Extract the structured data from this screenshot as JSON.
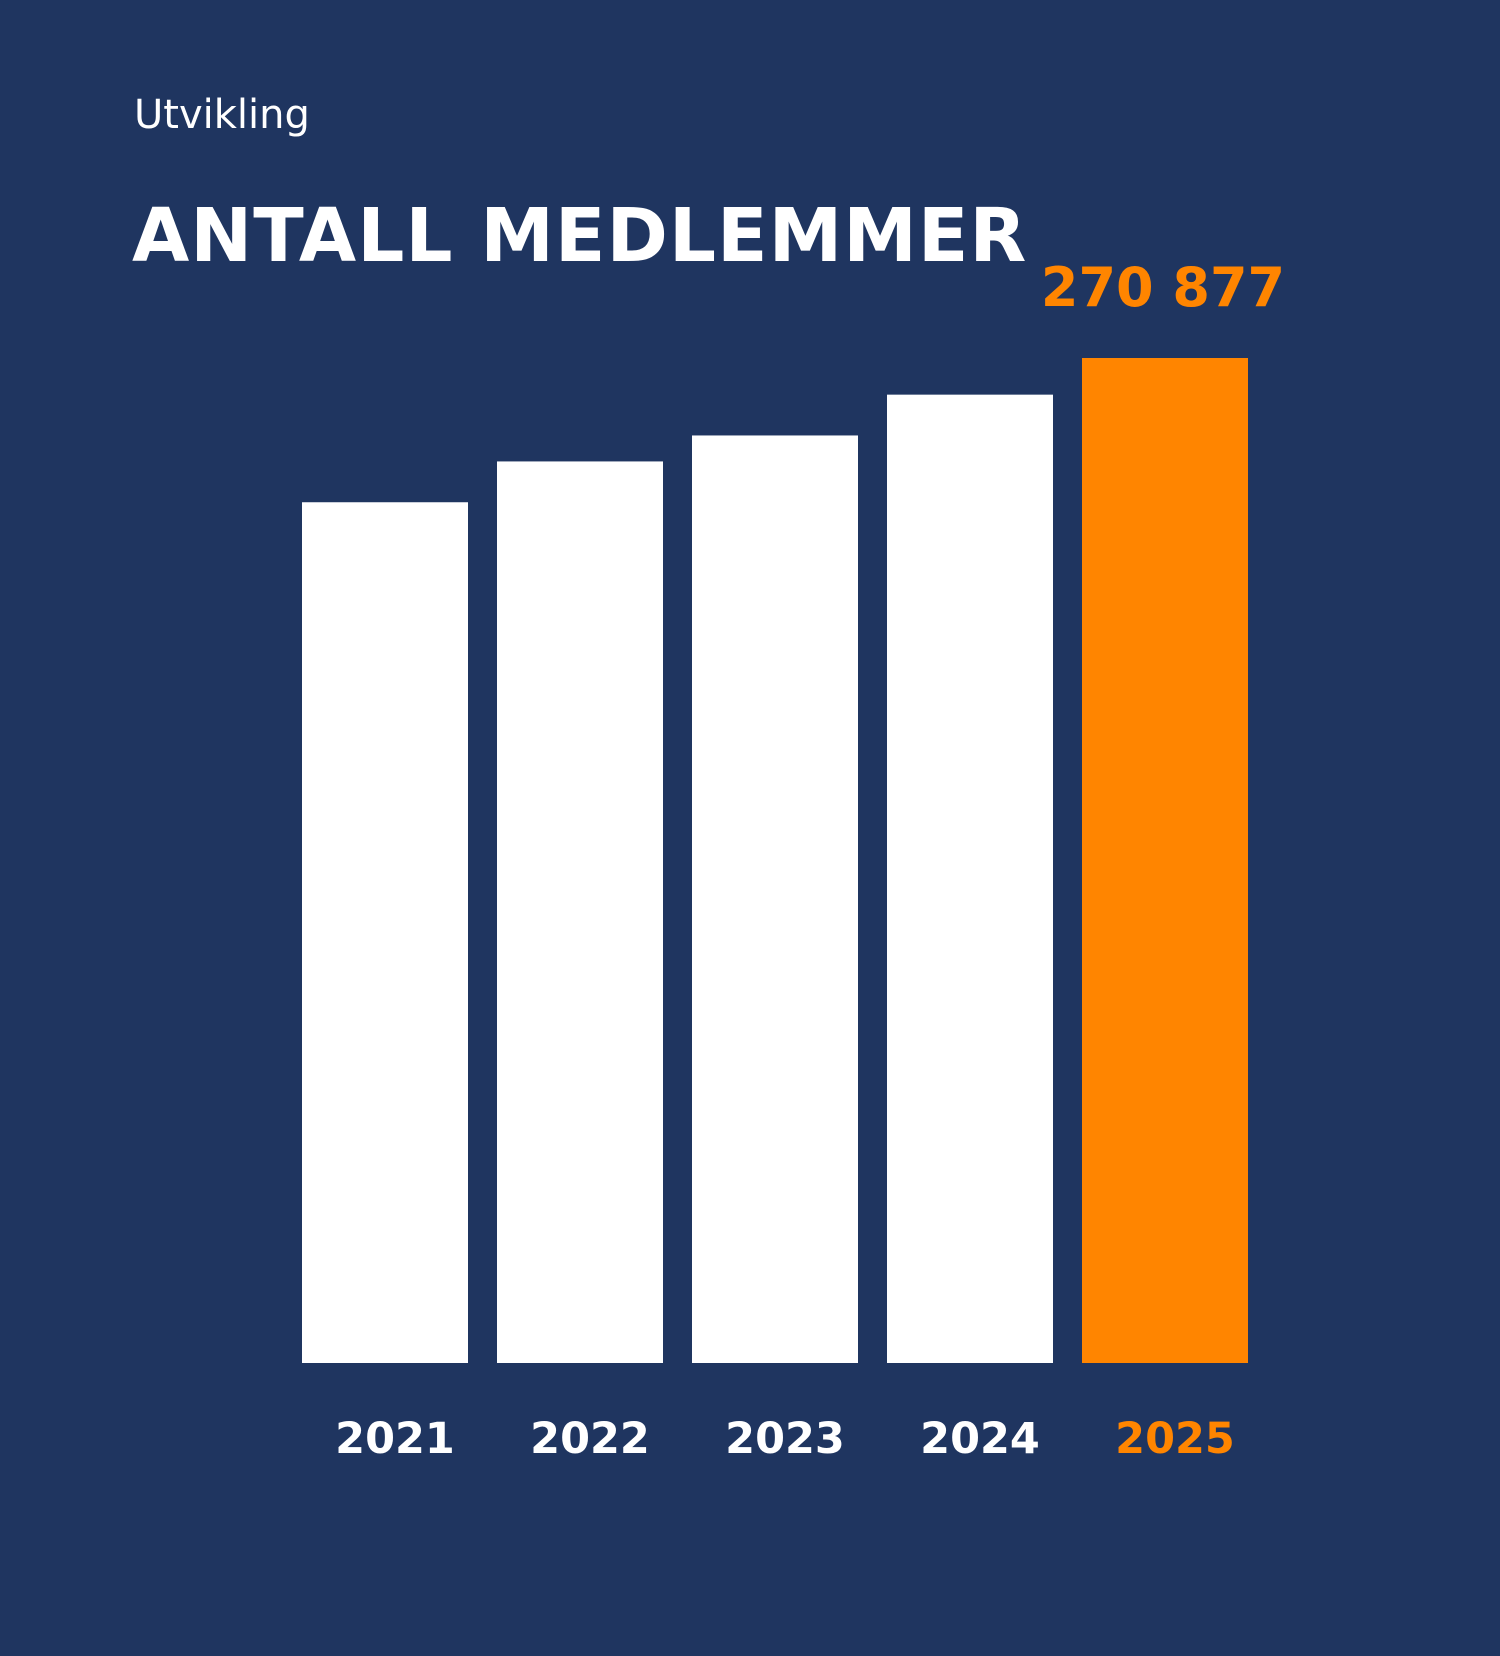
{
  "header": {
    "subtitle": "Utvikling",
    "title": "ANTALL MEDLEMMER"
  },
  "colors": {
    "background": "#1f3560",
    "bar": "#ffffff",
    "highlight": "#ff8500"
  },
  "chart_data": {
    "type": "bar",
    "categories": [
      "2021",
      "2022",
      "2023",
      "2024",
      "2025"
    ],
    "values": [
      232000,
      243000,
      250000,
      261000,
      270877
    ],
    "highlight_index": 4,
    "data_labels": [
      "",
      "",
      "",
      "",
      "270 877"
    ],
    "ylim": [
      0,
      270877
    ],
    "grid": false,
    "legend": "none"
  }
}
